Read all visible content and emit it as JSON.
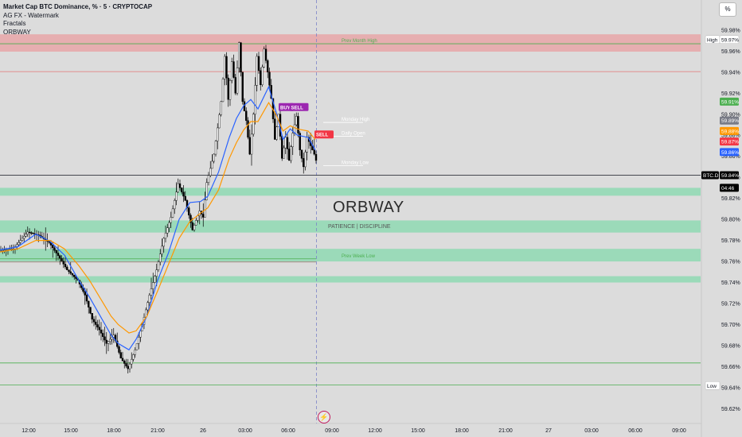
{
  "legend": {
    "title": "Market Cap BTC Dominance, % · 5 · CRYPTOCAP",
    "indicators": [
      "AG FX - Watermark",
      "Fractals",
      "ORBWAY"
    ]
  },
  "toolbar": {
    "percent_button": "%"
  },
  "watermark": {
    "title": "ORBWAY",
    "subtitle": "PATIENCE  |  DISCIPLINE"
  },
  "colors": {
    "background": "#dcdcdc",
    "supply_zone": "#e8a6a8",
    "demand_zone": "#8fd9b3",
    "ema_fast": "#2962ff",
    "ema_slow": "#ff9800",
    "level_green": "#4caf50",
    "level_red": "#e57373",
    "candle": "#000000"
  },
  "chart_data": {
    "type": "candlestick",
    "symbol": "BTC.D",
    "ylim": [
      59.615,
      59.995
    ],
    "y_ticks": [
      "59.98%",
      "59.96%",
      "59.94%",
      "59.92%",
      "59.90%",
      "59.88%",
      "59.86%",
      "59.84%",
      "59.82%",
      "59.80%",
      "59.78%",
      "59.76%",
      "59.74%",
      "59.72%",
      "59.70%",
      "59.68%",
      "59.66%",
      "59.64%",
      "59.62%"
    ],
    "x_ticks": [
      "12:00",
      "15:00",
      "18:00",
      "21:00",
      "26",
      "03:00",
      "06:00",
      "09:00",
      "12:00",
      "15:00",
      "18:00",
      "21:00",
      "27",
      "03:00",
      "06:00",
      "09:00"
    ],
    "price_pills": [
      {
        "label": "High",
        "value": 59.971,
        "bg": "#ffffff",
        "fg": "#131722"
      },
      {
        "label": "59.97%",
        "value": 59.971,
        "bg": "#ffffff",
        "fg": "#131722"
      },
      {
        "label": "59.91%",
        "value": 59.912,
        "bg": "#4caf50",
        "fg": "#ffffff"
      },
      {
        "label": "59.89%",
        "value": 59.894,
        "bg": "#787b86",
        "fg": "#ffffff"
      },
      {
        "label": "59.88%",
        "value": 59.884,
        "bg": "#ff9800",
        "fg": "#ffffff"
      },
      {
        "label": "59.87%",
        "value": 59.874,
        "bg": "#f23645",
        "fg": "#ffffff"
      },
      {
        "label": "59.86%",
        "value": 59.864,
        "bg": "#2962ff",
        "fg": "#ffffff"
      },
      {
        "label": "59.84%",
        "value": 59.842,
        "bg": "#000000",
        "fg": "#ffffff"
      },
      {
        "label": "04:46",
        "value": 59.833,
        "bg": "#000000",
        "fg": "#ffffff"
      },
      {
        "label": "Low",
        "value": 59.642,
        "bg": "#ffffff",
        "fg": "#131722"
      }
    ],
    "symbol_tag": "BTC.D",
    "zones": [
      {
        "kind": "supply",
        "top": 59.976,
        "bottom": 59.9595
      },
      {
        "kind": "demand",
        "top": 59.83,
        "bottom": 59.8225
      },
      {
        "kind": "demand",
        "top": 59.799,
        "bottom": 59.7875
      },
      {
        "kind": "demand",
        "top": 59.772,
        "bottom": 59.76
      },
      {
        "kind": "demand",
        "top": 59.746,
        "bottom": 59.74
      }
    ],
    "levels": [
      {
        "name": "prev-month-high",
        "value": 59.967,
        "color": "#4caf50",
        "label": "Prev Month High",
        "full": true
      },
      {
        "name": "level-59-94",
        "value": 59.9405,
        "color": "#e57373",
        "label": "",
        "full": true
      },
      {
        "name": "monday-high",
        "value": 59.8922,
        "color": "#ffffff",
        "label": "Monday High",
        "full": false
      },
      {
        "name": "daily-open",
        "value": 59.879,
        "color": "#ffffff",
        "label": "Daily Open",
        "full": false
      },
      {
        "name": "monday-low",
        "value": 59.851,
        "color": "#ffffff",
        "label": "Monday Low",
        "full": false
      },
      {
        "name": "btc-price",
        "value": 59.842,
        "color": "#131722",
        "label": "",
        "full": true
      },
      {
        "name": "prev-week-low",
        "value": 59.7625,
        "color": "#4caf50",
        "label": "Prev Week Low",
        "full": false
      },
      {
        "name": "level-59-76",
        "value": 59.7595,
        "color": "#8d6e63",
        "label": "",
        "full": false
      },
      {
        "name": "level-59-66",
        "value": 59.6635,
        "color": "#4caf50",
        "label": "",
        "full": true
      },
      {
        "name": "low-line",
        "value": 59.6425,
        "color": "#4caf50",
        "label": "",
        "full": true
      }
    ],
    "signals": [
      {
        "label": "BUY",
        "value": 59.906,
        "bg": "#9c27b0",
        "bar": 78
      },
      {
        "label": "SELL",
        "value": 59.906,
        "bg": "#9c27b0",
        "bar": 81
      },
      {
        "label": "SELL",
        "value": 59.88,
        "bg": "#f23645",
        "bar": 88
      }
    ],
    "series": [
      {
        "name": "EMA fast",
        "color": "#2962ff",
        "values": [
          [
            0,
            59.771
          ],
          [
            5,
            59.774
          ],
          [
            10,
            59.786
          ],
          [
            14,
            59.779
          ],
          [
            18,
            59.766
          ],
          [
            22,
            59.742
          ],
          [
            25,
            59.726
          ],
          [
            28,
            59.708
          ],
          [
            31,
            59.69
          ],
          [
            33,
            59.682
          ],
          [
            36,
            59.676
          ],
          [
            38,
            59.686
          ],
          [
            41,
            59.708
          ],
          [
            44,
            59.742
          ],
          [
            47,
            59.768
          ],
          [
            50,
            59.8
          ],
          [
            53,
            59.816
          ],
          [
            56,
            59.817
          ],
          [
            58,
            59.822
          ],
          [
            61,
            59.845
          ],
          [
            64,
            59.878
          ],
          [
            66,
            59.896
          ],
          [
            68,
            59.908
          ],
          [
            70,
            59.914
          ],
          [
            72,
            59.905
          ],
          [
            75,
            59.926
          ],
          [
            77,
            59.903
          ],
          [
            79,
            59.876
          ],
          [
            81,
            59.886
          ],
          [
            83,
            59.88
          ],
          [
            86,
            59.878
          ],
          [
            88,
            59.866
          ]
        ]
      },
      {
        "name": "EMA slow",
        "color": "#ff9800",
        "values": [
          [
            0,
            59.769
          ],
          [
            5,
            59.772
          ],
          [
            10,
            59.78
          ],
          [
            14,
            59.78
          ],
          [
            18,
            59.772
          ],
          [
            22,
            59.756
          ],
          [
            25,
            59.742
          ],
          [
            28,
            59.725
          ],
          [
            31,
            59.708
          ],
          [
            33,
            59.7
          ],
          [
            36,
            59.692
          ],
          [
            38,
            59.694
          ],
          [
            41,
            59.708
          ],
          [
            44,
            59.732
          ],
          [
            47,
            59.757
          ],
          [
            50,
            59.782
          ],
          [
            53,
            59.798
          ],
          [
            56,
            59.806
          ],
          [
            58,
            59.811
          ],
          [
            61,
            59.828
          ],
          [
            64,
            59.858
          ],
          [
            66,
            59.873
          ],
          [
            68,
            59.885
          ],
          [
            70,
            59.893
          ],
          [
            72,
            59.893
          ],
          [
            75,
            59.911
          ],
          [
            77,
            59.9
          ],
          [
            79,
            59.884
          ],
          [
            81,
            59.889
          ],
          [
            83,
            59.886
          ],
          [
            86,
            59.884
          ],
          [
            88,
            59.876
          ]
        ]
      },
      {
        "name": "price path",
        "color": "#000000",
        "values": [
          [
            0,
            59.77
          ],
          [
            4,
            59.772
          ],
          [
            8,
            59.788
          ],
          [
            11,
            59.785
          ],
          [
            14,
            59.778
          ],
          [
            17,
            59.763
          ],
          [
            19,
            59.752
          ],
          [
            22,
            59.742
          ],
          [
            24,
            59.728
          ],
          [
            26,
            59.705
          ],
          [
            28,
            59.695
          ],
          [
            30,
            59.682
          ],
          [
            32,
            59.69
          ],
          [
            34,
            59.668
          ],
          [
            36,
            59.658
          ],
          [
            38,
            59.676
          ],
          [
            40,
            59.7
          ],
          [
            42,
            59.728
          ],
          [
            44,
            59.752
          ],
          [
            46,
            59.782
          ],
          [
            48,
            59.802
          ],
          [
            50,
            59.834
          ],
          [
            52,
            59.818
          ],
          [
            54,
            59.79
          ],
          [
            56,
            59.808
          ],
          [
            57,
            59.802
          ],
          [
            58,
            59.835
          ],
          [
            60,
            59.862
          ],
          [
            62,
            59.912
          ],
          [
            63,
            59.955
          ],
          [
            64,
            59.914
          ],
          [
            65,
            59.95
          ],
          [
            66,
            59.92
          ],
          [
            67,
            59.968
          ],
          [
            68,
            59.912
          ],
          [
            69,
            59.894
          ],
          [
            70,
            59.862
          ],
          [
            71,
            59.9
          ],
          [
            72,
            59.955
          ],
          [
            73,
            59.928
          ],
          [
            74,
            59.962
          ],
          [
            75,
            59.94
          ],
          [
            76,
            59.915
          ],
          [
            77,
            59.876
          ],
          [
            78,
            59.9
          ],
          [
            79,
            59.858
          ],
          [
            80,
            59.878
          ],
          [
            81,
            59.856
          ],
          [
            82,
            59.882
          ],
          [
            83,
            59.898
          ],
          [
            84,
            59.866
          ],
          [
            85,
            59.85
          ],
          [
            86,
            59.878
          ],
          [
            87,
            59.87
          ],
          [
            88,
            59.862
          ],
          [
            89,
            59.85
          ],
          [
            90,
            59.842
          ]
        ]
      }
    ]
  }
}
